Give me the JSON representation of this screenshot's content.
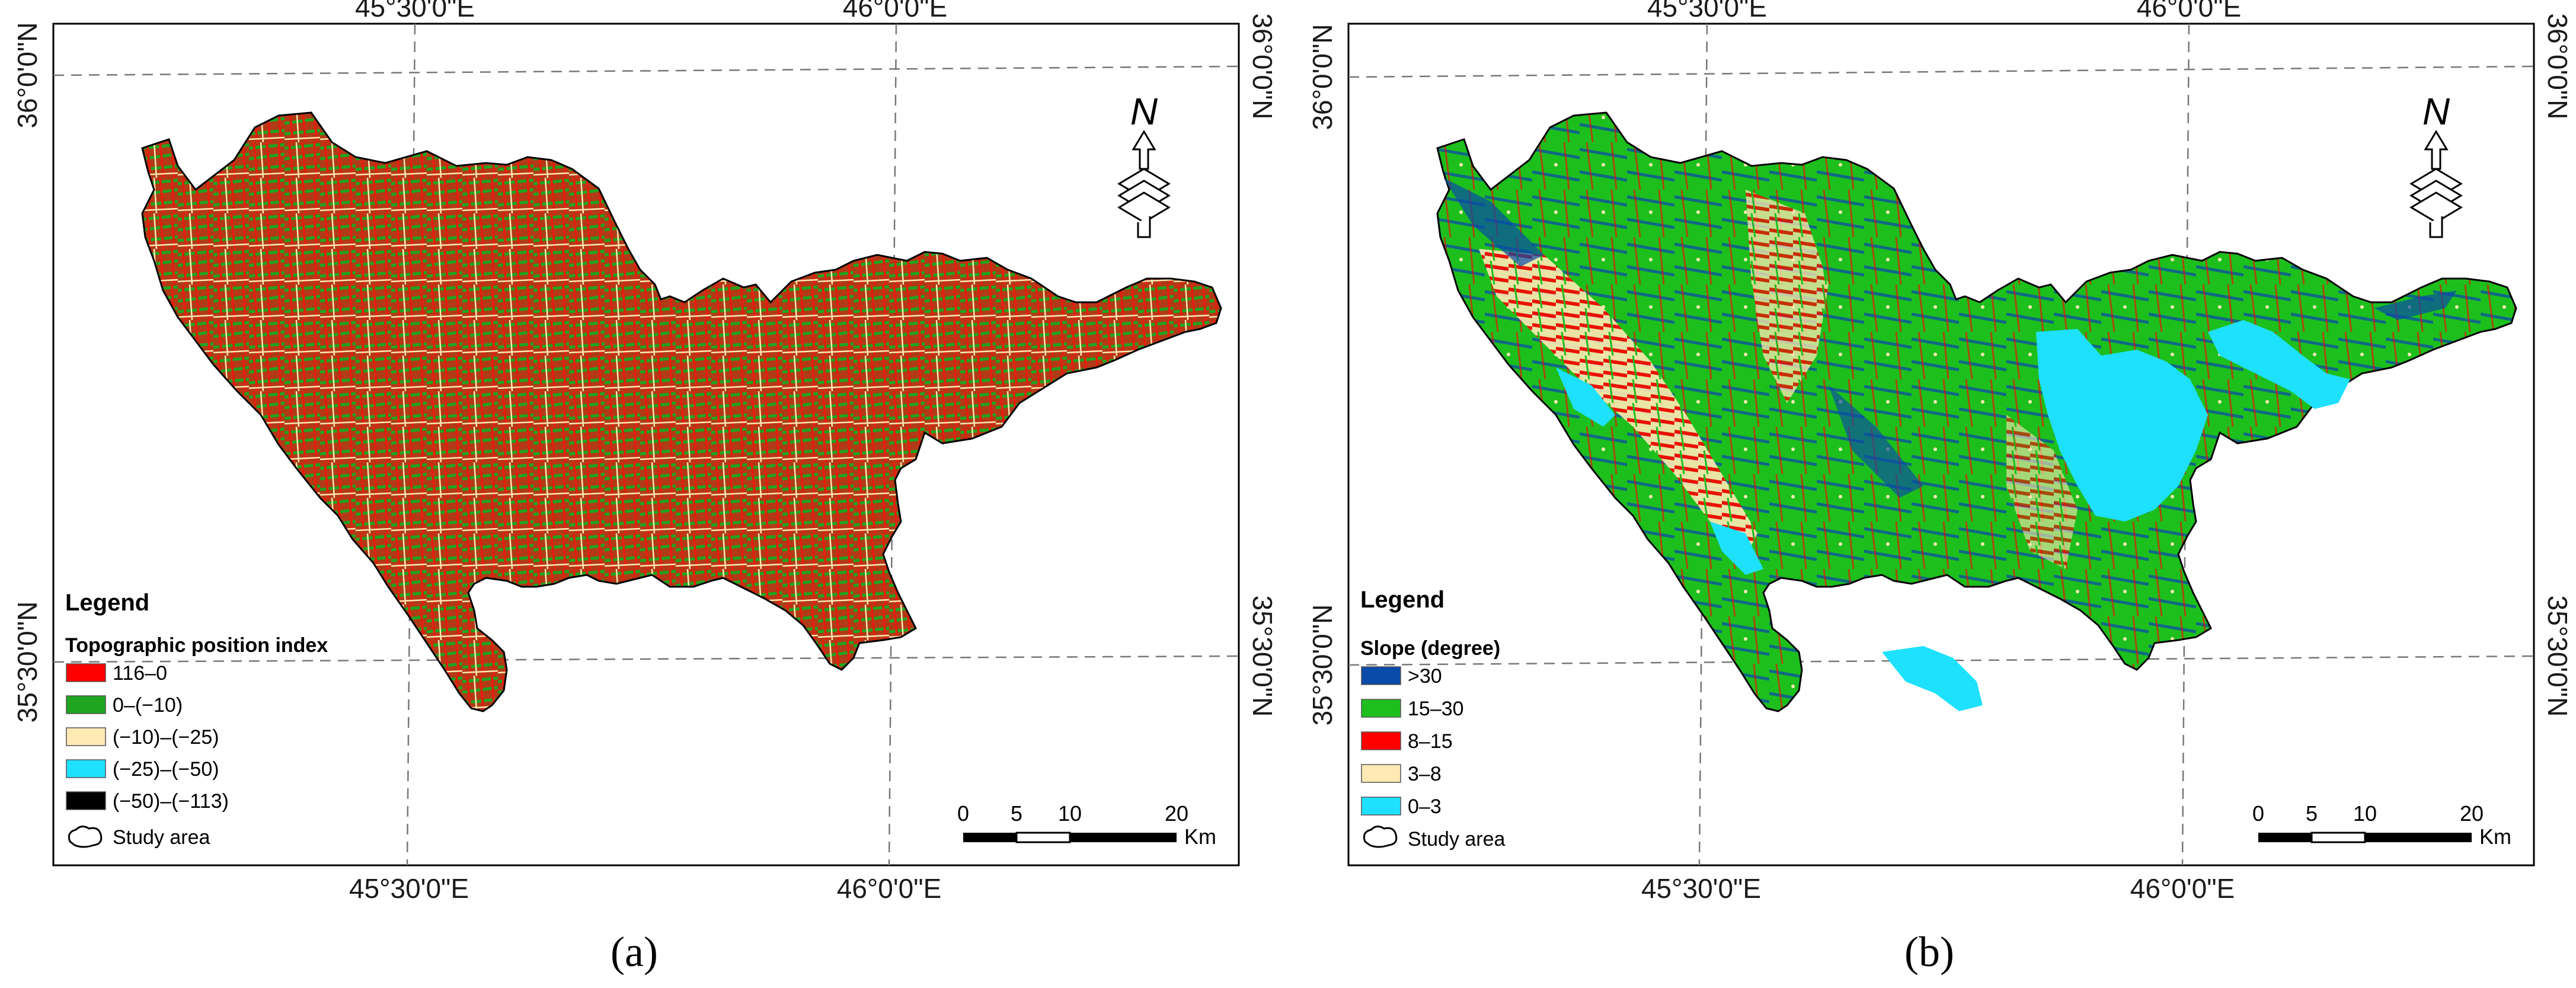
{
  "colors": {
    "red": "#ff0000",
    "green": "#1fa51f",
    "cream": "#ffe9b4",
    "cyan": "#1ee1ff",
    "black": "#000000",
    "blue": "#0a4aa8",
    "bright_green": "#1dbf1d"
  },
  "panels": [
    {
      "caption_text": "(a)",
      "top_lon": [
        "45°30'0\"E",
        "46°0'0\"E"
      ],
      "bottom_lon": [
        "45°30'0\"E",
        "46°0'0\"E"
      ],
      "left_lat": [
        "36°0'0\"N",
        "35°30'0\"N"
      ],
      "right_lat": [
        "36°0'0\"N",
        "35°30'0\"N"
      ],
      "legend_title": "Legend",
      "legend_subtitle": "Topographic position index",
      "legend_items": [
        {
          "label": "116–0",
          "color": "#ff0000"
        },
        {
          "label": "0–(−10)",
          "color": "#1fa51f"
        },
        {
          "label": "(−10)–(−25)",
          "color": "#ffe9b4"
        },
        {
          "label": "(−25)–(−50)",
          "color": "#1ee1ff"
        },
        {
          "label": "(−50)–(−113)",
          "color": "#000000"
        }
      ],
      "study_area_label": "Study area",
      "scale_ticks": [
        "0",
        "5",
        "10",
        "20"
      ],
      "scale_unit": "Km",
      "north_label": "N"
    },
    {
      "caption_text": "(b)",
      "top_lon": [
        "45°30'0\"E",
        "46°0'0\"E"
      ],
      "bottom_lon": [
        "45°30'0\"E",
        "46°0'0\"E"
      ],
      "left_lat": [
        "36°0'0\"N",
        "35°30'0\"N"
      ],
      "right_lat": [
        "36°0'0\"N",
        "35°30'0\"N"
      ],
      "legend_title": "Legend",
      "legend_subtitle": "Slope (degree)",
      "legend_items": [
        {
          "label": ">30",
          "color": "#0a4aa8"
        },
        {
          "label": "15–30",
          "color": "#1dbf1d"
        },
        {
          "label": "8–15",
          "color": "#ff0000"
        },
        {
          "label": "3–8",
          "color": "#ffe9b4"
        },
        {
          "label": "0–3",
          "color": "#1ee1ff"
        }
      ],
      "study_area_label": "Study area",
      "scale_ticks": [
        "0",
        "5",
        "10",
        "20"
      ],
      "scale_unit": "Km",
      "north_label": "N"
    }
  ]
}
